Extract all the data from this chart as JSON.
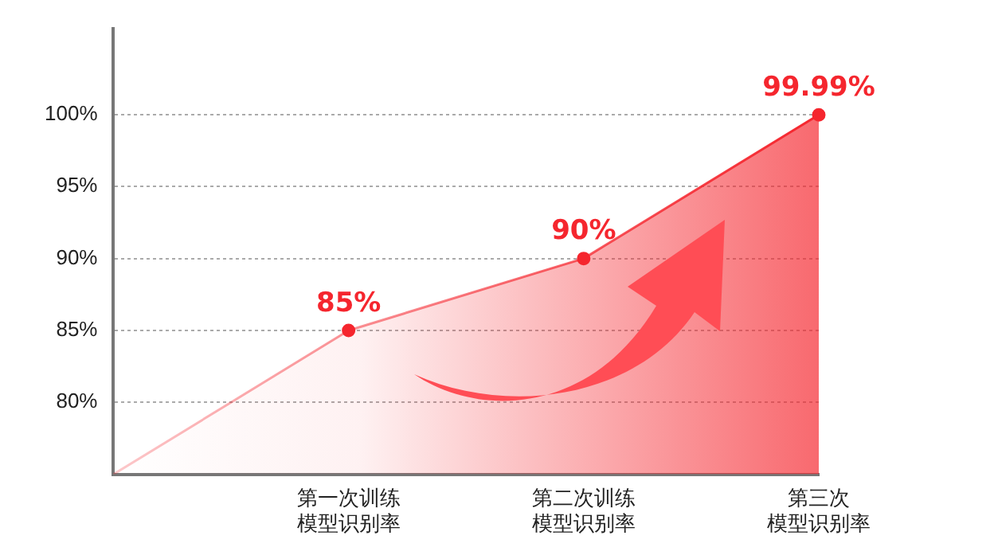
{
  "chart_data": {
    "type": "area",
    "categories": [
      null,
      "第一次训练模型识别率",
      "第二次训练模型识别率",
      "第三次模型识别率"
    ],
    "series": [
      {
        "color": "#f5262e",
        "values": [
          75,
          85,
          90,
          99.99
        ],
        "value_labels": [
          null,
          "85%",
          "90%",
          "99.99%"
        ]
      }
    ],
    "ylim": [
      75,
      106
    ],
    "yticks": [
      {
        "value": 80,
        "label": "80%"
      },
      {
        "value": 85,
        "label": "85%"
      },
      {
        "value": 90,
        "label": "90%"
      },
      {
        "value": 95,
        "label": "95%"
      },
      {
        "value": 100,
        "label": "100%"
      }
    ],
    "grid": "y",
    "marker": "circle",
    "legend": false
  }
}
